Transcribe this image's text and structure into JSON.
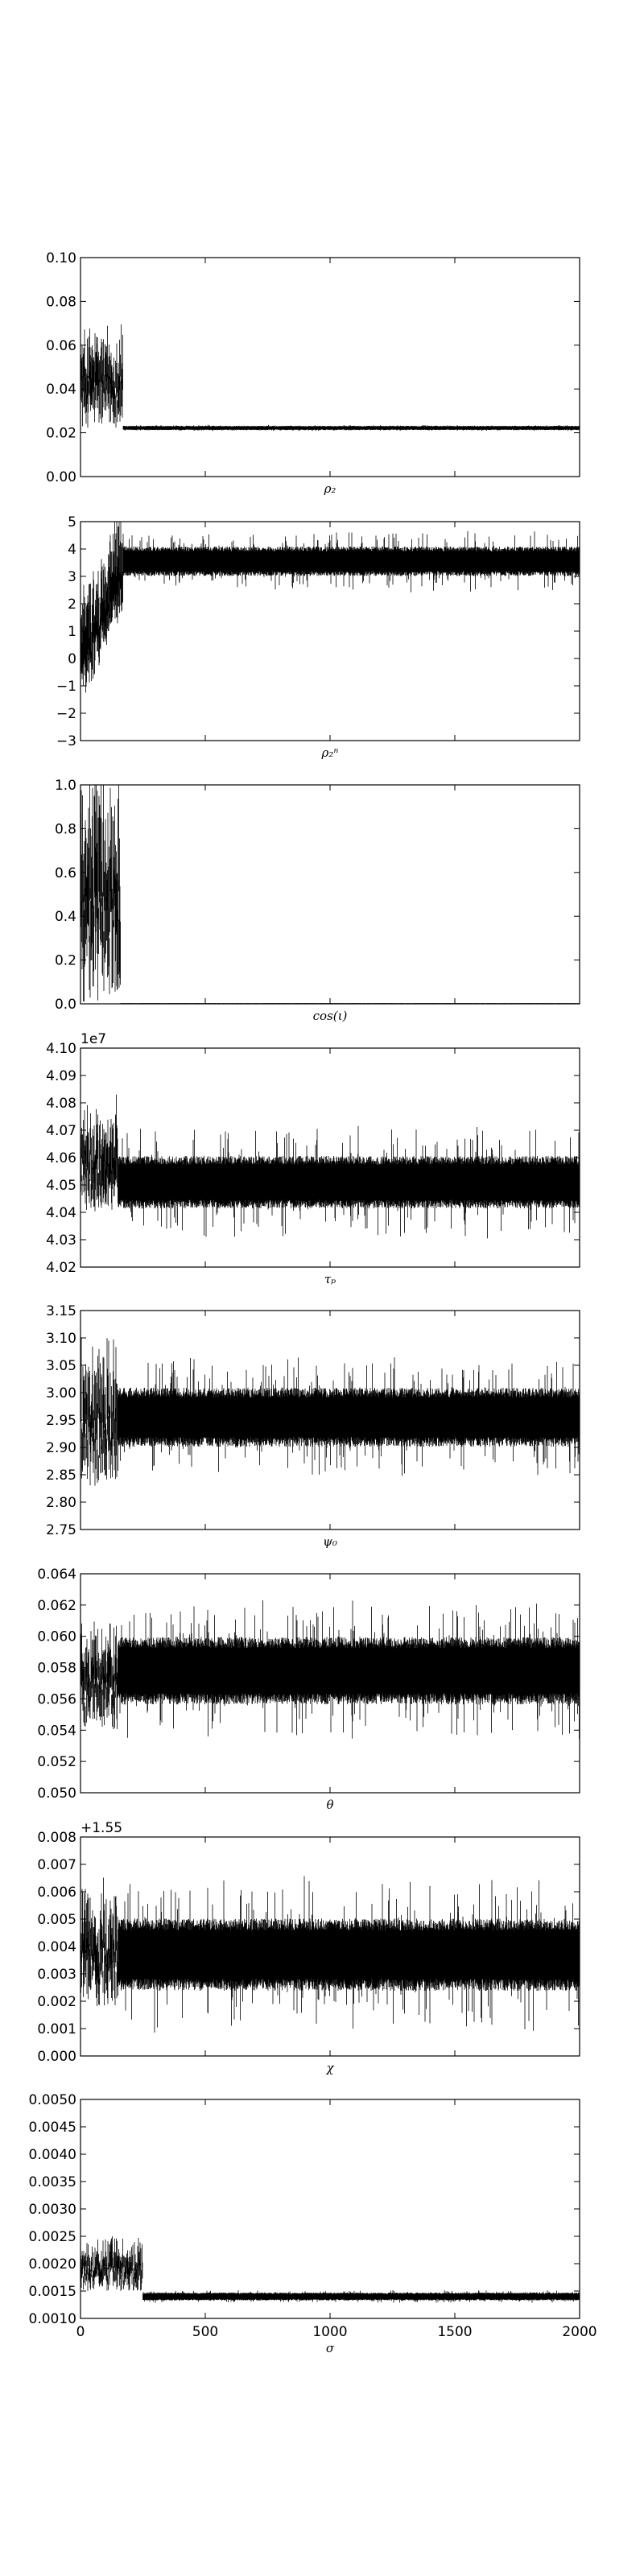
{
  "chart_data": [
    {
      "type": "line",
      "xlabel": "ρ₂",
      "xlim": [
        0,
        2000
      ],
      "ylim": [
        0.0,
        0.1
      ],
      "yticks": [
        "0.00",
        "0.02",
        "0.04",
        "0.06",
        "0.08",
        "0.10"
      ],
      "x_ticks_shown": false,
      "trace": {
        "burn_in_end": 170,
        "burn_in_low": 0.022,
        "burn_in_high": 0.062,
        "center": 0.0222,
        "band": 0.0008,
        "spike": 0.0005
      }
    },
    {
      "type": "line",
      "xlabel": "ρ₂ⁿ",
      "xlim": [
        0,
        2000
      ],
      "ylim": [
        -3,
        5
      ],
      "yticks": [
        "−3",
        "−2",
        "−1",
        "0",
        "1",
        "2",
        "3",
        "4",
        "5"
      ],
      "x_ticks_shown": false,
      "trace": {
        "burn_in_end": 170,
        "burn_in_low": -0.3,
        "burn_in_high": 3.2,
        "center": 3.55,
        "band": 0.45,
        "spike": 0.6
      }
    },
    {
      "type": "line",
      "xlabel": "cos(ι)",
      "xlim": [
        0,
        2000
      ],
      "ylim": [
        0.0,
        1.0
      ],
      "yticks": [
        "0.0",
        "0.2",
        "0.4",
        "0.6",
        "0.8",
        "1.0"
      ],
      "x_ticks_shown": false,
      "trace": {
        "burn_in_end": 160,
        "burn_in_low": 0.0,
        "burn_in_high": 0.88,
        "center": 0.002,
        "band": 0.001,
        "spike": 0.0
      }
    },
    {
      "type": "line",
      "xlabel": "τₚ",
      "offset_text": "1e7",
      "xlim": [
        0,
        2000
      ],
      "ylim": [
        4.02,
        4.1
      ],
      "yticks": [
        "4.02",
        "4.03",
        "4.04",
        "4.05",
        "4.06",
        "4.07",
        "4.08",
        "4.09",
        "4.10"
      ],
      "x_ticks_shown": false,
      "trace": {
        "burn_in_end": 150,
        "burn_in_low": 4.04,
        "burn_in_high": 4.075,
        "center": 4.051,
        "band": 0.008,
        "spike": 0.012
      }
    },
    {
      "type": "line",
      "xlabel": "ψ₀",
      "xlim": [
        0,
        2000
      ],
      "ylim": [
        2.75,
        3.15
      ],
      "yticks": [
        "2.75",
        "2.80",
        "2.85",
        "2.90",
        "2.95",
        "3.00",
        "3.05",
        "3.10",
        "3.15"
      ],
      "x_ticks_shown": false,
      "trace": {
        "burn_in_end": 150,
        "burn_in_low": 2.83,
        "burn_in_high": 3.05,
        "center": 2.955,
        "band": 0.045,
        "spike": 0.06
      }
    },
    {
      "type": "line",
      "xlabel": "θ",
      "xlim": [
        0,
        2000
      ],
      "ylim": [
        0.05,
        0.064
      ],
      "yticks": [
        "0.050",
        "0.052",
        "0.054",
        "0.056",
        "0.058",
        "0.060",
        "0.062",
        "0.064"
      ],
      "x_ticks_shown": false,
      "trace": {
        "burn_in_end": 150,
        "burn_in_low": 0.054,
        "burn_in_high": 0.06,
        "center": 0.0578,
        "band": 0.0018,
        "spike": 0.0025
      }
    },
    {
      "type": "line",
      "xlabel": "χ",
      "offset_text": "+1.55",
      "xlim": [
        0,
        2000
      ],
      "ylim": [
        0.0,
        0.008
      ],
      "yticks": [
        "0.000",
        "0.001",
        "0.002",
        "0.003",
        "0.004",
        "0.005",
        "0.006",
        "0.007",
        "0.008"
      ],
      "x_ticks_shown": false,
      "trace": {
        "burn_in_end": 150,
        "burn_in_low": 0.0018,
        "burn_in_high": 0.0055,
        "center": 0.0037,
        "band": 0.0011,
        "spike": 0.0016
      }
    },
    {
      "type": "line",
      "xlabel": "σ",
      "xlim": [
        0,
        2000
      ],
      "ylim": [
        0.001,
        0.005
      ],
      "yticks": [
        "0.0010",
        "0.0015",
        "0.0020",
        "0.0025",
        "0.0030",
        "0.0035",
        "0.0040",
        "0.0045",
        "0.0050"
      ],
      "x_ticks_shown": true,
      "xticks": [
        "0",
        "500",
        "1000",
        "1500",
        "2000"
      ],
      "trace": {
        "burn_in_end": 250,
        "burn_in_low": 0.0015,
        "burn_in_high": 0.0023,
        "center": 0.0014,
        "band": 6e-05,
        "spike": 5e-05
      }
    }
  ]
}
